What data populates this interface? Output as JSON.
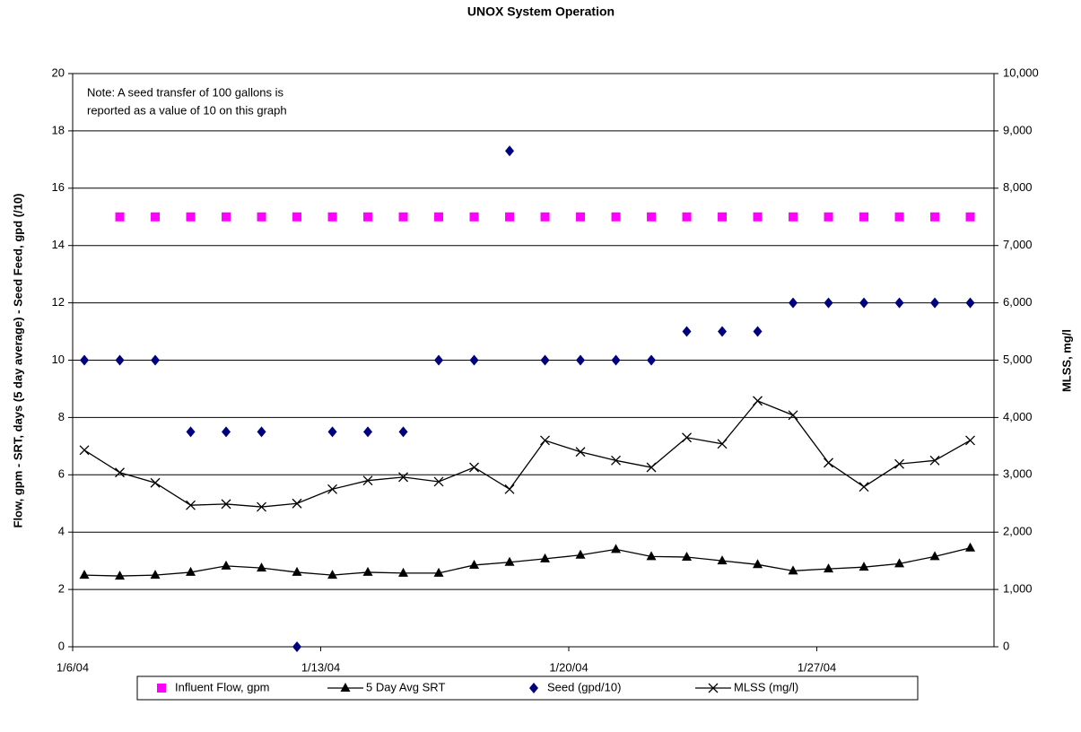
{
  "chart_data": {
    "type": "combo",
    "title": "UNOX System Operation",
    "y_label": "Flow, gpm - SRT, days (5 day average) - Seed Feed, gpd (/10)",
    "y2_label": "MLSS, mg/l",
    "annotation": [
      "Note: A seed transfer of 100 gallons is",
      "reported as a value of 10 on this graph"
    ],
    "categories": [
      "1/6/04",
      null,
      null,
      null,
      null,
      null,
      null,
      "1/13/04",
      null,
      null,
      null,
      null,
      null,
      null,
      "1/20/04",
      null,
      null,
      null,
      null,
      null,
      null,
      "1/27/04",
      null,
      null,
      null,
      null
    ],
    "ylim": [
      0,
      20
    ],
    "yticks": [
      0,
      2,
      4,
      6,
      8,
      10,
      12,
      14,
      16,
      18,
      20
    ],
    "y2lim": [
      0,
      10000
    ],
    "y2ticks": [
      0,
      {
        "value": 1000,
        "label": "1,000"
      },
      {
        "value": 2000,
        "label": "2,000"
      },
      {
        "value": 3000,
        "label": "3,000"
      },
      {
        "value": 4000,
        "label": "4,000"
      },
      {
        "value": 5000,
        "label": "5,000"
      },
      {
        "value": 6000,
        "label": "6,000"
      },
      {
        "value": 7000,
        "label": "7,000"
      },
      {
        "value": 8000,
        "label": "8,000"
      },
      {
        "value": 9000,
        "label": "9,000"
      },
      {
        "value": 10000,
        "label": "10,000"
      }
    ],
    "grid": true,
    "legend": "bottom",
    "series": [
      {
        "name": "Influent Flow, gpm",
        "type": "scatter",
        "marker": "square",
        "color": "#ff00ff",
        "values": [
          null,
          15,
          15,
          15,
          15,
          15,
          15,
          15,
          15,
          15,
          15,
          15,
          15,
          15,
          15,
          15,
          15,
          15,
          15,
          15,
          15,
          15,
          15,
          15,
          15,
          15
        ]
      },
      {
        "name": "5 Day Avg SRT",
        "type": "line",
        "marker": "triangle",
        "color": "#000000",
        "values": [
          2.5,
          2.47,
          2.5,
          2.6,
          2.82,
          2.75,
          2.6,
          2.5,
          2.6,
          2.57,
          2.57,
          2.85,
          2.95,
          3.07,
          3.2,
          3.4,
          3.15,
          3.13,
          3.0,
          2.87,
          2.65,
          2.72,
          2.78,
          2.9,
          3.15,
          3.45
        ]
      },
      {
        "name": "Seed (gpd/10)",
        "type": "scatter",
        "marker": "diamond",
        "color": "#000080",
        "values": [
          10,
          10,
          10,
          7.5,
          7.5,
          7.5,
          0,
          7.5,
          7.5,
          7.5,
          10,
          10,
          17.3,
          10,
          10,
          10,
          10,
          11,
          11,
          11,
          12,
          12,
          12,
          12,
          12,
          12
        ]
      },
      {
        "name": "MLSS (mg/l)",
        "type": "line",
        "marker": "x",
        "color": "#000000",
        "axis": "y2",
        "values": [
          3430,
          3040,
          2860,
          2470,
          2490,
          2440,
          2500,
          2750,
          2900,
          2960,
          2880,
          3130,
          2750,
          3600,
          3400,
          3250,
          3130,
          3650,
          3540,
          4290,
          4040,
          3210,
          2790,
          3190,
          3250,
          3600
        ]
      }
    ]
  }
}
